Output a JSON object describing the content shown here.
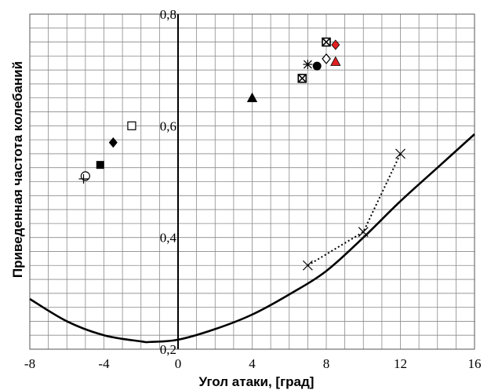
{
  "chart_data": {
    "type": "scatter",
    "xlabel": "Угол атаки, [град]",
    "ylabel": "Приведенная частота колебаний",
    "xlim": [
      -8,
      16
    ],
    "ylim": [
      0.2,
      0.8
    ],
    "x_ticks": [
      -8,
      -4,
      0,
      4,
      8,
      12,
      16
    ],
    "x_tick_labels": [
      "-8",
      "-4",
      "0",
      "4",
      "8",
      "12",
      "16"
    ],
    "y_ticks": [
      0.2,
      0.4,
      0.6,
      0.8
    ],
    "y_tick_labels": [
      "0,2",
      "0,4",
      "0,6",
      "0,8"
    ],
    "grid": true,
    "curve": {
      "style": "solid",
      "color": "#000000",
      "x": [
        -8,
        -6,
        -4,
        -2,
        -1.5,
        0,
        2,
        4,
        6,
        8,
        10,
        12,
        14,
        16
      ],
      "y": [
        0.29,
        0.25,
        0.225,
        0.214,
        0.213,
        0.217,
        0.236,
        0.262,
        0.298,
        0.34,
        0.4,
        0.465,
        0.525,
        0.585
      ]
    },
    "dotted_series": {
      "style": "dotted",
      "marker": "x",
      "x": [
        7,
        10,
        12
      ],
      "y": [
        0.35,
        0.41,
        0.55
      ]
    },
    "markers": [
      {
        "x": -5,
        "y": 0.51,
        "marker": "open-circle",
        "color": "#000000"
      },
      {
        "x": -5.1,
        "y": 0.505,
        "marker": "plus",
        "color": "#000000"
      },
      {
        "x": -4.2,
        "y": 0.53,
        "marker": "filled-square",
        "color": "#000000"
      },
      {
        "x": -3.5,
        "y": 0.57,
        "marker": "filled-diamond",
        "color": "#000000"
      },
      {
        "x": -2.5,
        "y": 0.6,
        "marker": "open-square",
        "color": "#000000"
      },
      {
        "x": 4,
        "y": 0.65,
        "marker": "filled-triangle",
        "color": "#000000"
      },
      {
        "x": 6.7,
        "y": 0.685,
        "marker": "boxed-x",
        "color": "#000000"
      },
      {
        "x": 7,
        "y": 0.71,
        "marker": "star",
        "color": "#000000"
      },
      {
        "x": 7.5,
        "y": 0.707,
        "marker": "filled-circle",
        "color": "#000000"
      },
      {
        "x": 8,
        "y": 0.75,
        "marker": "boxed-x",
        "color": "#000000"
      },
      {
        "x": 8,
        "y": 0.72,
        "marker": "open-diamond",
        "color": "#000000"
      },
      {
        "x": 8.5,
        "y": 0.745,
        "marker": "filled-diamond",
        "color": "#e02020"
      },
      {
        "x": 8.5,
        "y": 0.715,
        "marker": "filled-triangle",
        "color": "#e02020"
      }
    ]
  }
}
